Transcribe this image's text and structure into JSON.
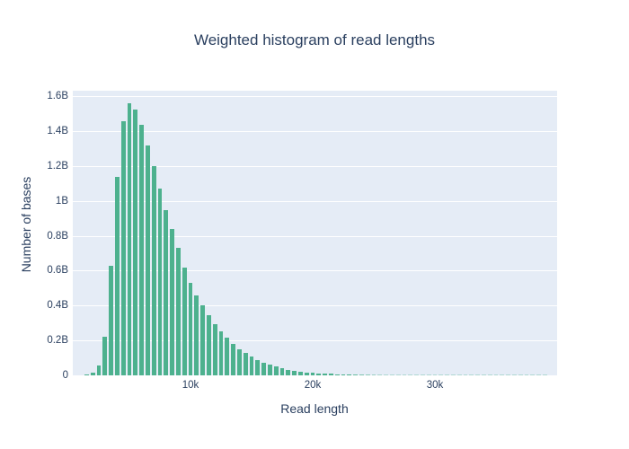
{
  "title": "Weighted histogram of read lengths",
  "colors": {
    "page_bg": "#ffffff",
    "plot_bg": "#e5ecf6",
    "grid": "#ffffff",
    "bar": "#4db18e",
    "text": "#2a3f5f"
  },
  "chart_data": {
    "type": "bar",
    "title": "Weighted histogram of read lengths",
    "xlabel": "Read length",
    "ylabel": "Number of bases",
    "unit_y": "bases (billions)",
    "bin_size": 500,
    "grid": true,
    "legend": false,
    "xlim": [
      368,
      40000
    ],
    "ylim": [
      0,
      1.632
    ],
    "xticks": [
      {
        "v": 10000,
        "label": "10k"
      },
      {
        "v": 20000,
        "label": "20k"
      },
      {
        "v": 30000,
        "label": "30k"
      }
    ],
    "yticks": [
      {
        "v": 0,
        "label": "0"
      },
      {
        "v": 0.2,
        "label": "0.2B"
      },
      {
        "v": 0.4,
        "label": "0.4B"
      },
      {
        "v": 0.6,
        "label": "0.6B"
      },
      {
        "v": 0.8,
        "label": "0.8B"
      },
      {
        "v": 1.0,
        "label": "1B"
      },
      {
        "v": 1.2,
        "label": "1.2B"
      },
      {
        "v": 1.4,
        "label": "1.4B"
      },
      {
        "v": 1.6,
        "label": "1.6B"
      }
    ],
    "x": [
      1500,
      2000,
      2500,
      3000,
      3500,
      4000,
      4500,
      5000,
      5500,
      6000,
      6500,
      7000,
      7500,
      8000,
      8500,
      9000,
      9500,
      10000,
      10500,
      11000,
      11500,
      12000,
      12500,
      13000,
      13500,
      14000,
      14500,
      15000,
      15500,
      16000,
      16500,
      17000,
      17500,
      18000,
      18500,
      19000,
      19500,
      20000,
      20500,
      21000,
      21500,
      22000,
      22500,
      23000,
      23500,
      24000,
      24500,
      25000,
      25500,
      26000,
      26500,
      27000,
      27500,
      28000,
      28500,
      29000,
      29500,
      30000,
      30500,
      31000,
      31500,
      32000,
      32500,
      33000,
      33500,
      34000,
      34500,
      35000,
      35500,
      36000,
      36500,
      37000,
      37500,
      38000,
      38500,
      39000
    ],
    "values": [
      0.005,
      0.015,
      0.057,
      0.22,
      0.63,
      1.14,
      1.455,
      1.56,
      1.525,
      1.435,
      1.32,
      1.2,
      1.07,
      0.945,
      0.84,
      0.73,
      0.62,
      0.53,
      0.46,
      0.4,
      0.345,
      0.295,
      0.25,
      0.215,
      0.18,
      0.15,
      0.128,
      0.106,
      0.088,
      0.073,
      0.06,
      0.049,
      0.04,
      0.033,
      0.027,
      0.022,
      0.018,
      0.015,
      0.012,
      0.01,
      0.0085,
      0.007,
      0.006,
      0.005,
      0.0042,
      0.0035,
      0.003,
      0.0025,
      0.0021,
      0.0018,
      0.0015,
      0.0013,
      0.0011,
      0.001,
      0.0009,
      0.0008,
      0.0007,
      0.0006,
      0.0006,
      0.0005,
      0.0005,
      0.0004,
      0.0004,
      0.0003,
      0.0003,
      0.0003,
      0.0002,
      0.0002,
      0.0002,
      0.0002,
      0.0001,
      0.0001,
      0.0001,
      0.0001,
      0.0001,
      0.0001
    ]
  }
}
